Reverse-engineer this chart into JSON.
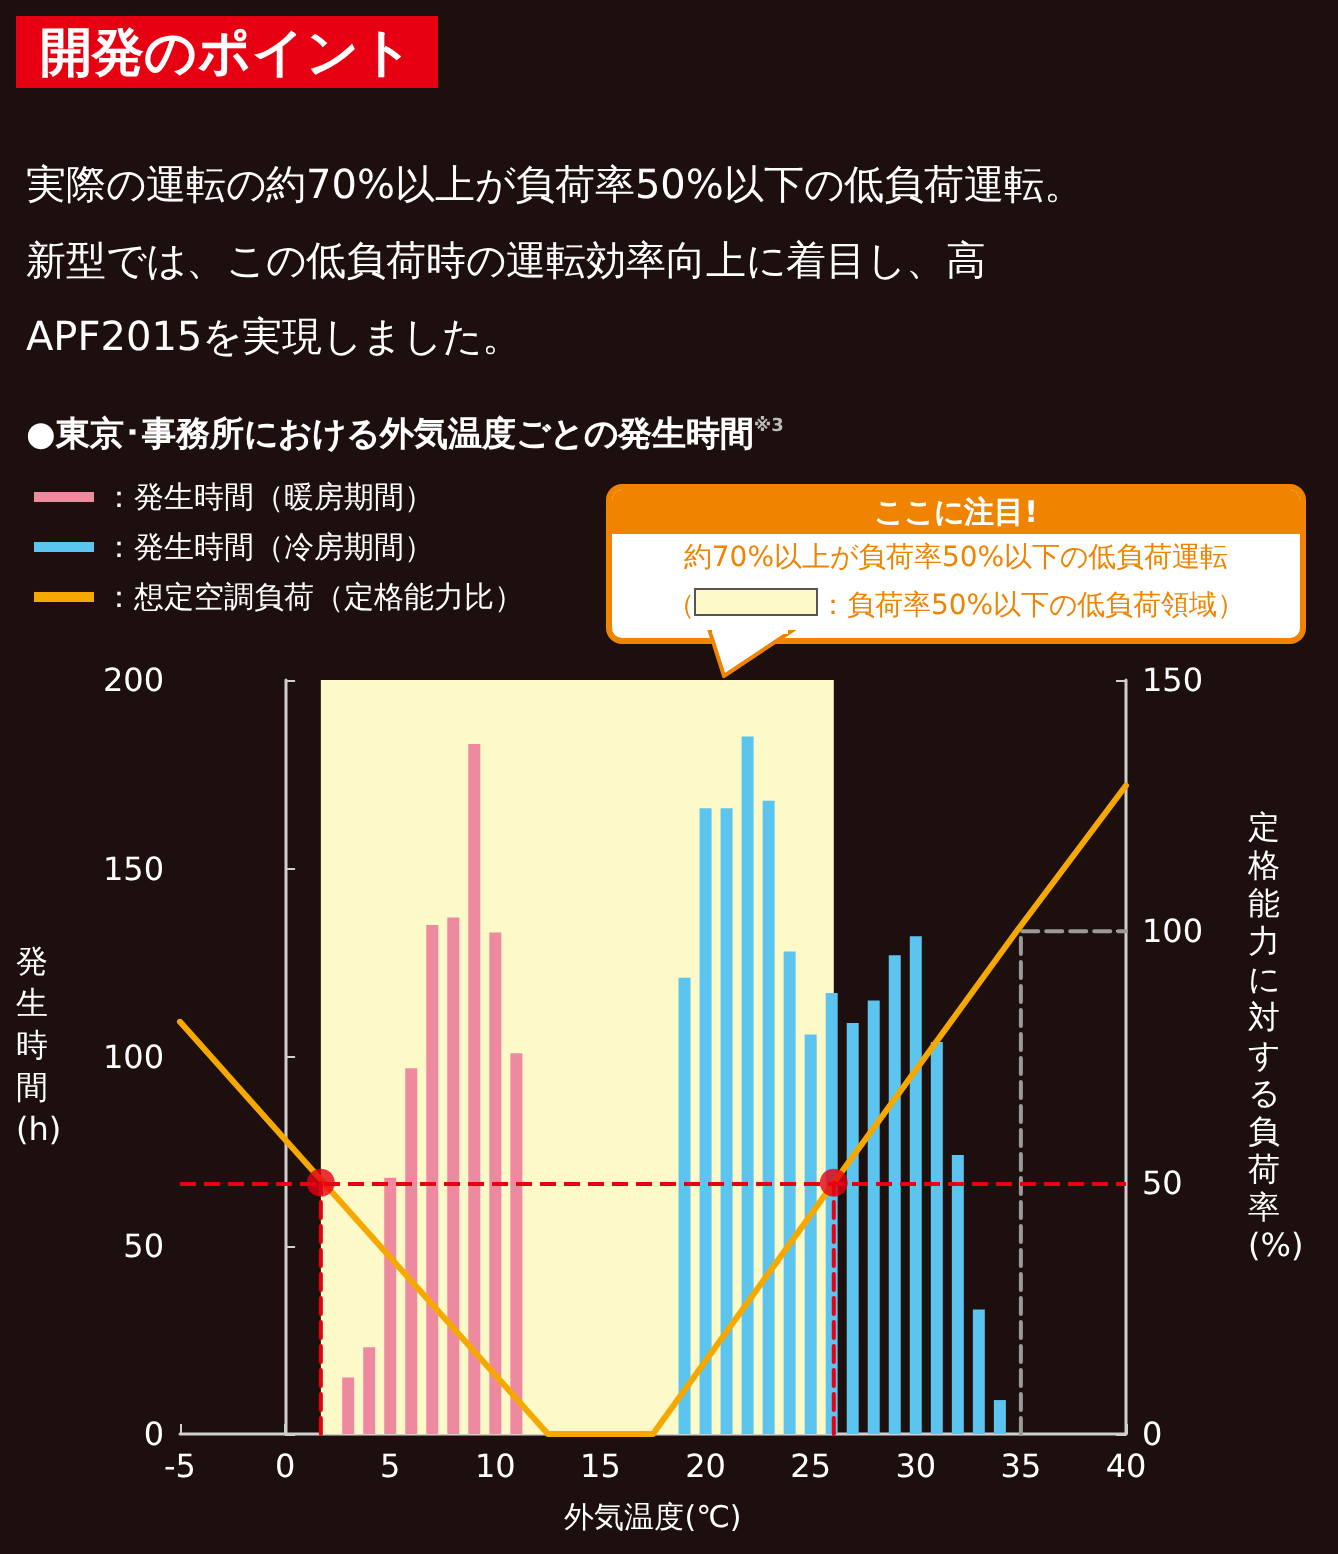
{
  "chart_data": {
    "type": "bar",
    "title": "開発のポイント",
    "subtitle": "実際の運転の約70%以上が負荷率50%以下の低負荷運転。新型では、この低負荷時の運転効率向上に着目し、高APF2015を実現しました。",
    "annotations": [
      "●東京･事務所における外気温度ごとの発生時間$^{※3}$",
      "ここに注目!",
      "約70%以上が負荷率50%以下の低負荷運転",
      "（"
    ],
    "xlabel": "外気温度(℃)",
    "ylabel": "発生時間(h)",
    "y2label": "定格能力に対する負荷率(%)",
    "xlim": [
      -5,
      40
    ],
    "xticks": [
      -5,
      0,
      5,
      10,
      15,
      20,
      25,
      30,
      35,
      40
    ],
    "ylim": [
      0,
      200
    ],
    "yticks": [
      0,
      50,
      100,
      150,
      200
    ],
    "y2lim": [
      0,
      150
    ],
    "y2ticks": [
      0,
      50,
      100,
      150
    ],
    "grid": false,
    "legend": "top left",
    "bands": [
      {
        "axis": "x",
        "from": 1.7,
        "to": 26.1,
        "label": "：負荷率50%以下の低負荷領域）",
        "color": "#fdf9c8"
      }
    ],
    "ref_lines": [
      {
        "axis": "y2",
        "value": 50,
        "color": "#e60012",
        "line_style": "dashed"
      }
    ],
    "series": [
      {
        "name": "：発生時間（暖房期間）",
        "color": "#ee8aa0",
        "x": [
          3,
          4,
          5,
          6,
          7,
          8,
          9,
          10,
          11
        ],
        "values": [
          15,
          23,
          68,
          97,
          135,
          137,
          183,
          133,
          101
        ]
      },
      {
        "name": "：発生時間（冷房期間）",
        "color": "#5bc4ef",
        "x": [
          19,
          20,
          21,
          22,
          23,
          24,
          25,
          26,
          27,
          28,
          29,
          30,
          31,
          32,
          33,
          34
        ],
        "values": [
          121,
          166,
          166,
          185,
          168,
          128,
          106,
          117,
          109,
          115,
          127,
          132,
          104,
          74,
          33,
          9
        ]
      },
      {
        "name": "：想定空調負荷（定格能力比）",
        "type": "line",
        "axis": "y2",
        "color": "#f5a800",
        "marker": "none",
        "line_style": "solid",
        "x": [
          -5,
          12.5,
          17.5,
          26.1,
          34.8,
          40
        ],
        "values": [
          82,
          0,
          0,
          50,
          100,
          129
        ]
      },
      {
        "type": "line",
        "axis": "y2",
        "color": "#e60012",
        "marker": "none",
        "line_style": "dashed",
        "x": [
          1.7,
          1.7
        ],
        "values": [
          0,
          50
        ]
      },
      {
        "type": "line",
        "axis": "y2",
        "color": "#e60012",
        "marker": "none",
        "line_style": "dashed",
        "x": [
          26.1,
          26.1
        ],
        "values": [
          0,
          50
        ]
      },
      {
        "type": "line",
        "axis": "y2",
        "color": "#9a9a9a",
        "marker": "none",
        "line_style": "dashed",
        "x": [
          35,
          35,
          40
        ],
        "values": [
          0,
          100,
          100
        ]
      },
      {
        "type": "scatter",
        "axis": "y2",
        "color": "#e60012",
        "marker": "circle",
        "x": [
          1.7,
          26.1
        ],
        "values": [
          50,
          50
        ]
      }
    ]
  }
}
